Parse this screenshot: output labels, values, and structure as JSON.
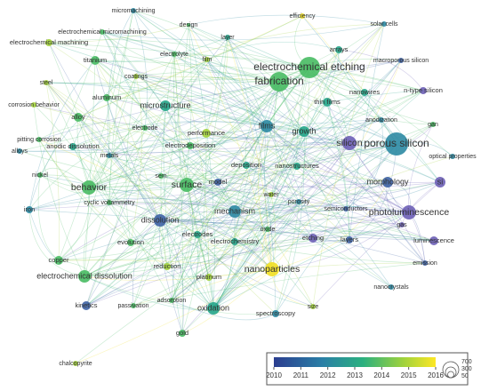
{
  "nodes": [
    {
      "label": "micromachining"
    },
    {
      "label": "design"
    },
    {
      "label": "layer"
    },
    {
      "label": "efficiency"
    },
    {
      "label": "solar cells"
    },
    {
      "label": "electrochemical micromachining"
    },
    {
      "label": "electrochemical machining"
    },
    {
      "label": "titanium"
    },
    {
      "label": "electrolyte"
    },
    {
      "label": "film"
    },
    {
      "label": "arrays"
    },
    {
      "label": "macroporous silicon"
    },
    {
      "label": "electrochemical etching"
    },
    {
      "label": "fabrication"
    },
    {
      "label": "steel"
    },
    {
      "label": "coatings"
    },
    {
      "label": "aluminum"
    },
    {
      "label": "nanowires"
    },
    {
      "label": "n-type silicon"
    },
    {
      "label": "corrosion behavior"
    },
    {
      "label": "alloy"
    },
    {
      "label": "microstructure"
    },
    {
      "label": "thin films"
    },
    {
      "label": "performance"
    },
    {
      "label": "anodization"
    },
    {
      "label": "gan"
    },
    {
      "label": "electrode"
    },
    {
      "label": "films"
    },
    {
      "label": "growth"
    },
    {
      "label": "pitting corrosion"
    },
    {
      "label": "anodic dissolution"
    },
    {
      "label": "electrodeposition"
    },
    {
      "label": "silicon"
    },
    {
      "label": "porous silicon"
    },
    {
      "label": "alloys"
    },
    {
      "label": "metals"
    },
    {
      "label": "optical properties"
    },
    {
      "label": "deposition"
    },
    {
      "label": "nanostructures"
    },
    {
      "label": "nickel"
    },
    {
      "label": "sem"
    },
    {
      "label": "morphology"
    },
    {
      "label": "si"
    },
    {
      "label": "behavior"
    },
    {
      "label": "surface"
    },
    {
      "label": "model"
    },
    {
      "label": "water"
    },
    {
      "label": "cyclic voltammetry"
    },
    {
      "label": "porosity"
    },
    {
      "label": "semiconductors"
    },
    {
      "label": "iron"
    },
    {
      "label": "mechanism"
    },
    {
      "label": "photoluminescence"
    },
    {
      "label": "dissolution"
    },
    {
      "label": "oxide"
    },
    {
      "label": "gas"
    },
    {
      "label": "electrodes"
    },
    {
      "label": "etching"
    },
    {
      "label": "layers"
    },
    {
      "label": "luminescence"
    },
    {
      "label": "evolution"
    },
    {
      "label": "electrochemistry"
    },
    {
      "label": "copper"
    },
    {
      "label": "reduction"
    },
    {
      "label": "nanoparticles"
    },
    {
      "label": "emission"
    },
    {
      "label": "electrochemical dissolution"
    },
    {
      "label": "platinum"
    },
    {
      "label": "adsorption"
    },
    {
      "label": "kinetics"
    },
    {
      "label": "passivation"
    },
    {
      "label": "oxidation"
    },
    {
      "label": "size"
    },
    {
      "label": "nanocrystals"
    },
    {
      "label": "spectroscopy"
    },
    {
      "label": "gold"
    },
    {
      "label": "chalcopyrite"
    }
  ],
  "legend": {
    "year_ticks": [
      2010,
      2011,
      2012,
      2013,
      2014,
      2015,
      2016
    ],
    "size_labels": [
      700,
      300,
      50
    ]
  }
}
